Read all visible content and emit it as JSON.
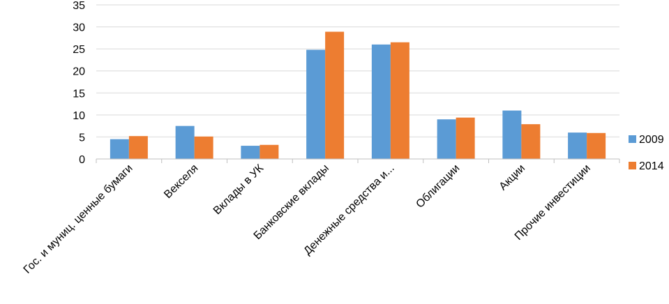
{
  "chart_data": {
    "type": "bar",
    "title": "",
    "xlabel": "",
    "ylabel": "",
    "ylim": [
      0,
      35
    ],
    "yticks": [
      0,
      5,
      10,
      15,
      20,
      25,
      30,
      35
    ],
    "grid": true,
    "legend_position": "right",
    "categories": [
      "Гос. и муниц. ценные бумаги",
      "Векселя",
      "Вклады в УК",
      "Банковские вклады",
      "Денежные средства и...",
      "Облигации",
      "Акции",
      "Прочие инвестиции"
    ],
    "series": [
      {
        "name": "2009",
        "color": "#5B9BD5",
        "values": [
          4.5,
          7.5,
          3.0,
          24.8,
          26.0,
          9.0,
          11.0,
          6.0
        ]
      },
      {
        "name": "2014",
        "color": "#ED7D31",
        "values": [
          5.2,
          5.1,
          3.2,
          28.9,
          26.5,
          9.4,
          7.9,
          5.9
        ]
      }
    ]
  }
}
